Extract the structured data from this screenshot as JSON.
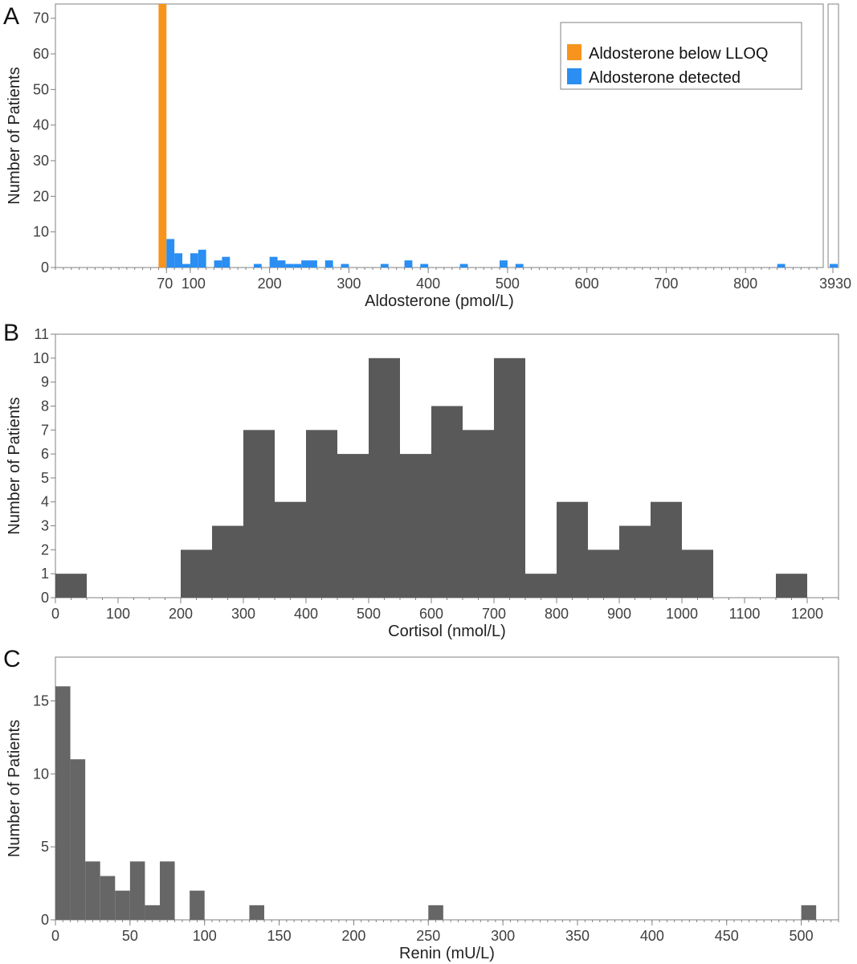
{
  "chart_data": [
    {
      "panel": "A",
      "type": "bar",
      "ylabel": "Number of Patients",
      "xlabel": "Aldosterone (pmol/L)",
      "ylim": [
        0,
        74
      ],
      "yticks": [
        0,
        10,
        20,
        30,
        40,
        50,
        60,
        70
      ],
      "xlim": [
        -70,
        895
      ],
      "xticks": [
        70,
        100,
        200,
        300,
        400,
        500,
        600,
        700,
        800
      ],
      "xtick_labels": [
        "70",
        "100",
        "200",
        "300",
        "400",
        "500",
        "600",
        "700",
        "800"
      ],
      "bin_width": 10,
      "broken_axis_label": "3930",
      "broken_axis_value": 1,
      "series": [
        {
          "name": "Aldosterone below LLOQ",
          "color": "#f7941d",
          "bins": [
            [
              60,
              74
            ]
          ]
        },
        {
          "name": "Aldosterone detected",
          "color": "#2a8ef2",
          "bins": [
            [
              70,
              8
            ],
            [
              80,
              4
            ],
            [
              90,
              1
            ],
            [
              100,
              4
            ],
            [
              110,
              5
            ],
            [
              130,
              2
            ],
            [
              140,
              3
            ],
            [
              180,
              1
            ],
            [
              200,
              3
            ],
            [
              210,
              2
            ],
            [
              220,
              1
            ],
            [
              230,
              1
            ],
            [
              240,
              2
            ],
            [
              250,
              2
            ],
            [
              270,
              2
            ],
            [
              290,
              1
            ],
            [
              340,
              1
            ],
            [
              370,
              2
            ],
            [
              390,
              1
            ],
            [
              440,
              1
            ],
            [
              490,
              2
            ],
            [
              510,
              1
            ],
            [
              840,
              1
            ]
          ]
        }
      ],
      "legend": [
        "Aldosterone below LLOQ",
        "Aldosterone detected"
      ]
    },
    {
      "panel": "B",
      "type": "bar",
      "ylabel": "Number of Patients",
      "xlabel": "Cortisol (nmol/L)",
      "ylim": [
        0,
        11
      ],
      "yticks": [
        0,
        1,
        2,
        3,
        4,
        5,
        6,
        7,
        8,
        9,
        10,
        11
      ],
      "xlim": [
        0,
        1250
      ],
      "xticks": [
        0,
        100,
        200,
        300,
        400,
        500,
        600,
        700,
        800,
        900,
        1000,
        1100,
        1200
      ],
      "bin_width": 50,
      "color": "#595959",
      "bins": [
        [
          0,
          1
        ],
        [
          200,
          2
        ],
        [
          250,
          3
        ],
        [
          300,
          7
        ],
        [
          350,
          4
        ],
        [
          400,
          7
        ],
        [
          450,
          6
        ],
        [
          500,
          10
        ],
        [
          550,
          6
        ],
        [
          600,
          8
        ],
        [
          650,
          7
        ],
        [
          700,
          10
        ],
        [
          750,
          1
        ],
        [
          800,
          4
        ],
        [
          850,
          2
        ],
        [
          900,
          3
        ],
        [
          950,
          4
        ],
        [
          1000,
          2
        ],
        [
          1150,
          1
        ]
      ]
    },
    {
      "panel": "C",
      "type": "bar",
      "ylabel": "Number of Patients",
      "xlabel": "Renin (mU/L)",
      "ylim": [
        0,
        18
      ],
      "yticks": [
        0,
        5,
        10,
        15
      ],
      "xlim": [
        0,
        525
      ],
      "xticks": [
        0,
        50,
        100,
        150,
        200,
        250,
        300,
        350,
        400,
        450,
        500
      ],
      "bin_width": 10,
      "color": "#666666",
      "bins": [
        [
          0,
          16
        ],
        [
          10,
          11
        ],
        [
          20,
          4
        ],
        [
          30,
          3
        ],
        [
          40,
          2
        ],
        [
          50,
          4
        ],
        [
          60,
          1
        ],
        [
          70,
          4
        ],
        [
          90,
          2
        ],
        [
          130,
          1
        ],
        [
          250,
          1
        ],
        [
          500,
          1
        ]
      ]
    }
  ]
}
